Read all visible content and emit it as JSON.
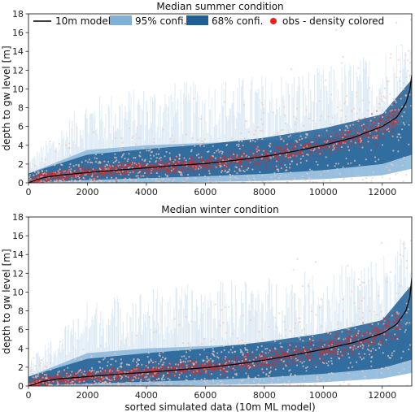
{
  "colors": {
    "model_line": "#000000",
    "ci95": "#7fb0d6",
    "ci68": "#1f5f94",
    "obs_red": "#e8231c",
    "obs_faint": "#f2c8b8",
    "axis": "#222222"
  },
  "legend": {
    "model": "10m model",
    "ci95": "95% confi.",
    "ci68": "68% confi.",
    "obs": "obs - density colored"
  },
  "xlabel": "sorted simulated data (10m ML model)",
  "chart_data": [
    {
      "type": "line",
      "title": "Median summer condition",
      "ylabel": "depth to gw level [m]",
      "xlabel": "",
      "xlim": [
        0,
        13000
      ],
      "ylim": [
        0,
        18
      ],
      "xticks": [
        0,
        2000,
        4000,
        6000,
        8000,
        10000,
        12000
      ],
      "yticks": [
        0,
        2,
        4,
        6,
        8,
        10,
        12,
        14,
        16,
        18
      ],
      "grid": false,
      "legend_position": "top",
      "series": [
        {
          "name": "10m model",
          "x": [
            0,
            200,
            500,
            1000,
            2000,
            3000,
            4000,
            5000,
            6000,
            7000,
            8000,
            9000,
            10000,
            11000,
            12000,
            12500,
            12800,
            12950,
            13000
          ],
          "y": [
            0.0,
            0.25,
            0.55,
            0.8,
            1.1,
            1.35,
            1.6,
            1.85,
            2.05,
            2.4,
            2.8,
            3.35,
            4.0,
            4.8,
            6.0,
            7.0,
            8.5,
            10.0,
            11.5
          ]
        },
        {
          "name": "68% confi.",
          "x": [
            0,
            2000,
            4000,
            6000,
            8000,
            10000,
            12000,
            13000
          ],
          "lower": [
            0.0,
            0.3,
            0.5,
            0.7,
            0.95,
            1.35,
            2.0,
            3.0
          ],
          "upper": [
            1.0,
            3.0,
            3.6,
            4.1,
            4.8,
            5.8,
            7.3,
            11.0
          ]
        },
        {
          "name": "95% confi.",
          "x": [
            0,
            2000,
            4000,
            6000,
            8000,
            10000,
            12000,
            13000
          ],
          "lower": [
            0.0,
            0.0,
            0.0,
            0.1,
            0.2,
            0.4,
            0.8,
            1.5
          ],
          "upper": [
            2.0,
            7.0,
            8.0,
            8.5,
            9.0,
            9.5,
            11.0,
            13.0
          ]
        },
        {
          "name": "obs - density colored",
          "type": "scatter",
          "description": "observations concentrated around the model line, denser near the curve"
        }
      ]
    },
    {
      "type": "line",
      "title": "Median winter condition",
      "ylabel": "depth to gw level [m]",
      "xlabel": "sorted simulated data (10m ML model)",
      "xlim": [
        0,
        13000
      ],
      "ylim": [
        0,
        18
      ],
      "xticks": [
        0,
        2000,
        4000,
        6000,
        8000,
        10000,
        12000
      ],
      "yticks": [
        0,
        2,
        4,
        6,
        8,
        10,
        12,
        14,
        16,
        18
      ],
      "grid": false,
      "series": [
        {
          "name": "10m model",
          "x": [
            0,
            200,
            500,
            1000,
            2000,
            3000,
            4000,
            5000,
            6000,
            7000,
            8000,
            9000,
            10000,
            11000,
            12000,
            12500,
            12800,
            12950,
            13000
          ],
          "y": [
            0.0,
            0.2,
            0.5,
            0.75,
            1.0,
            1.25,
            1.45,
            1.7,
            1.95,
            2.3,
            2.75,
            3.3,
            3.9,
            4.6,
            5.6,
            6.6,
            8.0,
            9.6,
            11.5
          ]
        },
        {
          "name": "68% confi.",
          "x": [
            0,
            2000,
            4000,
            6000,
            8000,
            10000,
            12000,
            13000
          ],
          "lower": [
            0.0,
            0.25,
            0.45,
            0.65,
            0.9,
            1.3,
            1.9,
            2.8
          ],
          "upper": [
            1.0,
            2.9,
            3.5,
            4.0,
            4.7,
            5.6,
            7.0,
            10.8
          ]
        },
        {
          "name": "95% confi.",
          "x": [
            0,
            2000,
            4000,
            6000,
            8000,
            10000,
            12000,
            13000
          ],
          "lower": [
            0.0,
            0.0,
            0.0,
            0.1,
            0.2,
            0.4,
            0.8,
            1.4
          ],
          "upper": [
            2.0,
            7.0,
            8.0,
            8.5,
            9.0,
            9.5,
            11.0,
            13.0
          ]
        },
        {
          "name": "obs - density colored",
          "type": "scatter",
          "description": "observations concentrated around the model line, denser near the curve"
        }
      ]
    }
  ]
}
